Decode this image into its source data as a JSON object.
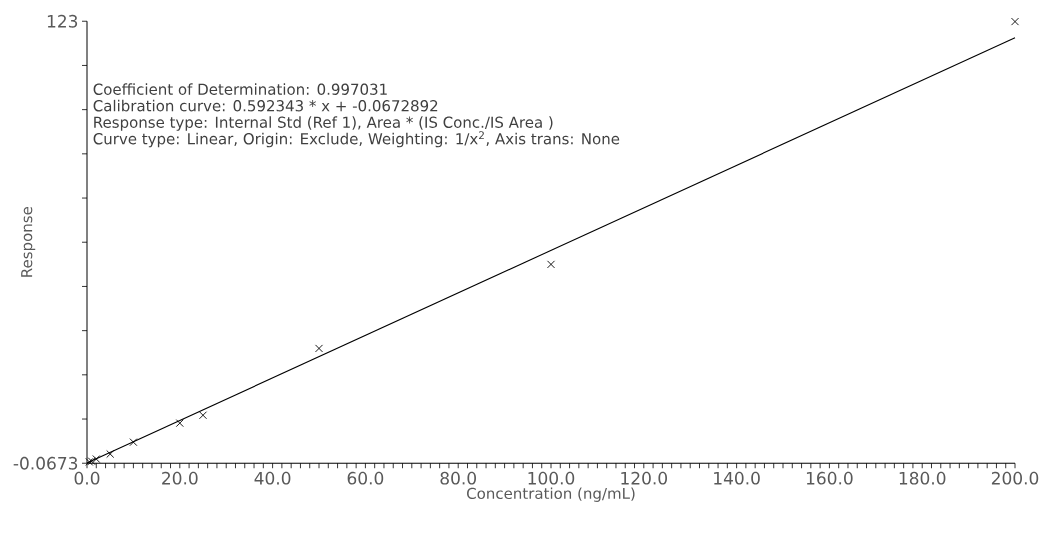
{
  "chart_data": {
    "type": "scatter",
    "xlabel": "Concentration (ng/mL)",
    "ylabel": "Response",
    "annotations": [
      "Coefficient of Determination: 0.997031",
      "Calibration curve: 0.592343 * x + -0.0672892",
      "Response type: Internal Std (Ref 1), Area * (IS Conc./IS Area  )",
      "Curve type: Linear, Origin: Exclude, Weighting: 1/x$^{2}$, Axis trans: None"
    ],
    "series": [
      {
        "marker": "cross",
        "color": "#000000",
        "x": [
          0.5,
          1,
          2,
          5,
          10,
          20,
          25,
          50,
          100,
          200
        ],
        "values": [
          0.3,
          0.5,
          1.1,
          2.5,
          5.8,
          11.1,
          13.3,
          31.9,
          55.3,
          122.9
        ]
      },
      {
        "type": "line",
        "marker": "none",
        "line_style": "solid",
        "color": "#000000",
        "x": [
          0,
          200
        ],
        "values": [
          0,
          118.4
        ]
      }
    ],
    "xlim": [
      0,
      200
    ],
    "ylim": [
      -0.0673,
      123
    ],
    "xticks": [
      {
        "value": 0,
        "label": "0.0"
      },
      {
        "value": 2,
        "label": null
      },
      {
        "value": 4,
        "label": null
      },
      {
        "value": 6,
        "label": null
      },
      {
        "value": 8,
        "label": null
      },
      {
        "value": 10,
        "label": null
      },
      {
        "value": 12,
        "label": null
      },
      {
        "value": 14,
        "label": null
      },
      {
        "value": 16,
        "label": null
      },
      {
        "value": 18,
        "label": null
      },
      {
        "value": 20,
        "label": "20.0"
      },
      {
        "value": 22,
        "label": null
      },
      {
        "value": 24,
        "label": null
      },
      {
        "value": 26,
        "label": null
      },
      {
        "value": 28,
        "label": null
      },
      {
        "value": 30,
        "label": null
      },
      {
        "value": 32,
        "label": null
      },
      {
        "value": 34,
        "label": null
      },
      {
        "value": 36,
        "label": null
      },
      {
        "value": 38,
        "label": null
      },
      {
        "value": 40,
        "label": "40.0"
      },
      {
        "value": 42,
        "label": null
      },
      {
        "value": 44,
        "label": null
      },
      {
        "value": 46,
        "label": null
      },
      {
        "value": 48,
        "label": null
      },
      {
        "value": 50,
        "label": null
      },
      {
        "value": 52,
        "label": null
      },
      {
        "value": 54,
        "label": null
      },
      {
        "value": 56,
        "label": null
      },
      {
        "value": 58,
        "label": null
      },
      {
        "value": 60,
        "label": "60.0"
      },
      {
        "value": 62,
        "label": null
      },
      {
        "value": 64,
        "label": null
      },
      {
        "value": 66,
        "label": null
      },
      {
        "value": 68,
        "label": null
      },
      {
        "value": 70,
        "label": null
      },
      {
        "value": 72,
        "label": null
      },
      {
        "value": 74,
        "label": null
      },
      {
        "value": 76,
        "label": null
      },
      {
        "value": 78,
        "label": null
      },
      {
        "value": 80,
        "label": "80.0"
      },
      {
        "value": 82,
        "label": null
      },
      {
        "value": 84,
        "label": null
      },
      {
        "value": 86,
        "label": null
      },
      {
        "value": 88,
        "label": null
      },
      {
        "value": 90,
        "label": null
      },
      {
        "value": 92,
        "label": null
      },
      {
        "value": 94,
        "label": null
      },
      {
        "value": 96,
        "label": null
      },
      {
        "value": 98,
        "label": null
      },
      {
        "value": 100,
        "label": "100.0"
      },
      {
        "value": 102,
        "label": null
      },
      {
        "value": 104,
        "label": null
      },
      {
        "value": 106,
        "label": null
      },
      {
        "value": 108,
        "label": null
      },
      {
        "value": 110,
        "label": null
      },
      {
        "value": 112,
        "label": null
      },
      {
        "value": 114,
        "label": null
      },
      {
        "value": 116,
        "label": null
      },
      {
        "value": 118,
        "label": null
      },
      {
        "value": 120,
        "label": "120.0"
      },
      {
        "value": 122,
        "label": null
      },
      {
        "value": 124,
        "label": null
      },
      {
        "value": 126,
        "label": null
      },
      {
        "value": 128,
        "label": null
      },
      {
        "value": 130,
        "label": null
      },
      {
        "value": 132,
        "label": null
      },
      {
        "value": 134,
        "label": null
      },
      {
        "value": 136,
        "label": null
      },
      {
        "value": 138,
        "label": null
      },
      {
        "value": 140,
        "label": "140.0"
      },
      {
        "value": 142,
        "label": null
      },
      {
        "value": 144,
        "label": null
      },
      {
        "value": 146,
        "label": null
      },
      {
        "value": 148,
        "label": null
      },
      {
        "value": 150,
        "label": null
      },
      {
        "value": 152,
        "label": null
      },
      {
        "value": 154,
        "label": null
      },
      {
        "value": 156,
        "label": null
      },
      {
        "value": 158,
        "label": null
      },
      {
        "value": 160,
        "label": "160.0"
      },
      {
        "value": 162,
        "label": null
      },
      {
        "value": 164,
        "label": null
      },
      {
        "value": 166,
        "label": null
      },
      {
        "value": 168,
        "label": null
      },
      {
        "value": 170,
        "label": null
      },
      {
        "value": 172,
        "label": null
      },
      {
        "value": 174,
        "label": null
      },
      {
        "value": 176,
        "label": null
      },
      {
        "value": 178,
        "label": null
      },
      {
        "value": 180,
        "label": "180.0"
      },
      {
        "value": 182,
        "label": null
      },
      {
        "value": 184,
        "label": null
      },
      {
        "value": 186,
        "label": null
      },
      {
        "value": 188,
        "label": null
      },
      {
        "value": 190,
        "label": null
      },
      {
        "value": 192,
        "label": null
      },
      {
        "value": 194,
        "label": null
      },
      {
        "value": 196,
        "label": null
      },
      {
        "value": 198,
        "label": null
      },
      {
        "value": 200,
        "label": "200.0"
      }
    ],
    "yticks": [
      -0.0673,
      {
        "value": 12.24,
        "label": null
      },
      {
        "value": 24.55,
        "label": null
      },
      {
        "value": 36.85,
        "label": null
      },
      {
        "value": 49.16,
        "label": null
      },
      {
        "value": 61.47,
        "label": null
      },
      {
        "value": 73.77,
        "label": null
      },
      {
        "value": 86.08,
        "label": null
      },
      {
        "value": 98.39,
        "label": null
      },
      {
        "value": 110.69,
        "label": null
      },
      123
    ],
    "grid": false
  }
}
